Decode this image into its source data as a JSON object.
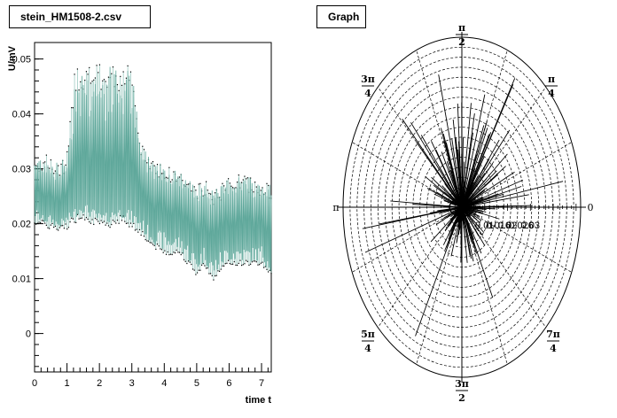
{
  "left_panel": {
    "title": "stein_HM1508-2.csv"
  },
  "right_panel": {
    "title": "Graph"
  },
  "chart_data": [
    {
      "type": "line",
      "title": "stein_HM1508-2.csv",
      "xlabel": "time t",
      "ylabel": "U/mV",
      "xlim": [
        0,
        7.3
      ],
      "ylim": [
        -0.007,
        0.053
      ],
      "xticks": [
        "0",
        "1",
        "2",
        "3",
        "4",
        "5",
        "6",
        "7"
      ],
      "yticks": [
        "0",
        "0.01",
        "0.02",
        "0.03",
        "0.04",
        "0.05"
      ],
      "series": [
        {
          "x": [
            0.0,
            0.25,
            0.5,
            0.75,
            1.0,
            1.25,
            1.5,
            1.75,
            2.0,
            2.25,
            2.5,
            2.75,
            3.0,
            3.25,
            3.5,
            3.75,
            4.0,
            4.25,
            4.5,
            4.75,
            5.0,
            5.25,
            5.5,
            5.75,
            6.0,
            6.25,
            6.5,
            6.75,
            7.0,
            7.3
          ],
          "center": [
            0.026,
            0.024,
            0.024,
            0.023,
            0.024,
            0.026,
            0.027,
            0.026,
            0.025,
            0.025,
            0.026,
            0.026,
            0.026,
            0.025,
            0.024,
            0.023,
            0.024,
            0.023,
            0.022,
            0.022,
            0.02,
            0.021,
            0.019,
            0.02,
            0.021,
            0.021,
            0.02,
            0.02,
            0.021,
            0.02
          ],
          "upper": [
            0.032,
            0.033,
            0.032,
            0.031,
            0.033,
            0.049,
            0.049,
            0.049,
            0.049,
            0.049,
            0.049,
            0.049,
            0.049,
            0.035,
            0.033,
            0.032,
            0.031,
            0.03,
            0.03,
            0.028,
            0.027,
            0.028,
            0.026,
            0.027,
            0.029,
            0.029,
            0.029,
            0.028,
            0.028,
            0.027
          ],
          "lower": [
            0.021,
            0.02,
            0.02,
            0.019,
            0.02,
            0.021,
            0.022,
            0.021,
            0.02,
            0.02,
            0.021,
            0.021,
            0.02,
            0.019,
            0.017,
            0.016,
            0.015,
            0.015,
            0.015,
            0.013,
            0.011,
            0.013,
            0.01,
            0.012,
            0.013,
            0.013,
            0.013,
            0.013,
            0.013,
            0.011
          ]
        }
      ],
      "color": "#5fa89b",
      "grid": false
    },
    {
      "type": "scatter",
      "title": "Graph",
      "polar": true,
      "angle_labels": [
        {
          "num": "",
          "den": "",
          "text": "0"
        },
        {
          "num": "π",
          "den": "4",
          "text": ""
        },
        {
          "num": "π",
          "den": "2",
          "text": ""
        },
        {
          "num": "3π",
          "den": "4",
          "text": ""
        },
        {
          "num": "",
          "den": "",
          "text": "π"
        },
        {
          "num": "5π",
          "den": "4",
          "text": ""
        },
        {
          "num": "3π",
          "den": "2",
          "text": ""
        },
        {
          "num": "7π",
          "den": "4",
          "text": ""
        }
      ],
      "radial_ticks": [
        "0.01",
        "0.016",
        "0.02",
        "0.026",
        "0.03"
      ],
      "radial_range": [
        0,
        0.052
      ],
      "n_rings": 17,
      "n_spokes": 16,
      "grid": true
    }
  ]
}
